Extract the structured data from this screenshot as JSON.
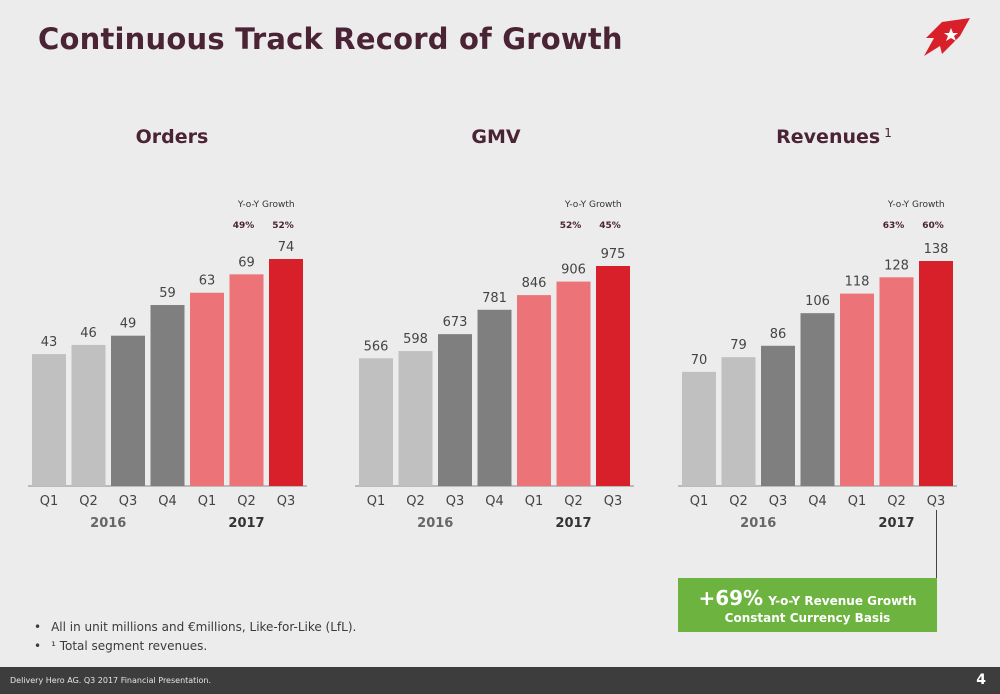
{
  "title": "Continuous Track Record of Growth",
  "logo_icon": "rocket-star-logo-icon",
  "colors": {
    "q_2016_light": "#c0c0c0",
    "q_2016_dark": "#7f7f7f",
    "q_2017_light": "#ec7377",
    "q_2017_dark": "#d7202a",
    "callout_bg": "#6db33f"
  },
  "growth_label": "Y-o-Y Growth",
  "chart_data": [
    {
      "type": "bar",
      "title": "Orders",
      "title_sup": "",
      "categories": [
        "Q1",
        "Q2",
        "Q3",
        "Q4",
        "Q1",
        "Q2",
        "Q3"
      ],
      "years": [
        "2016",
        "2017"
      ],
      "values": [
        43,
        46,
        49,
        59,
        63,
        69,
        74
      ],
      "yoy_growth": [
        "49%",
        "52%"
      ]
    },
    {
      "type": "bar",
      "title": "GMV",
      "title_sup": "",
      "categories": [
        "Q1",
        "Q2",
        "Q3",
        "Q4",
        "Q1",
        "Q2",
        "Q3"
      ],
      "years": [
        "2016",
        "2017"
      ],
      "values": [
        566,
        598,
        673,
        781,
        846,
        906,
        975
      ],
      "yoy_growth": [
        "52%",
        "45%"
      ]
    },
    {
      "type": "bar",
      "title": "Revenues",
      "title_sup": "1",
      "categories": [
        "Q1",
        "Q2",
        "Q3",
        "Q4",
        "Q1",
        "Q2",
        "Q3"
      ],
      "years": [
        "2016",
        "2017"
      ],
      "values": [
        70,
        79,
        86,
        106,
        118,
        128,
        138
      ],
      "yoy_growth": [
        "63%",
        "60%"
      ]
    }
  ],
  "callout": {
    "big": "+69%",
    "small": "Y-o-Y Revenue Growth",
    "line2": "Constant Currency Basis"
  },
  "bullets": [
    "All in unit millions and €millions, Like-for-Like (LfL).",
    "¹ Total segment revenues."
  ],
  "footer": {
    "source": "Delivery Hero AG. Q3 2017 Financial Presentation.",
    "page": "4"
  }
}
